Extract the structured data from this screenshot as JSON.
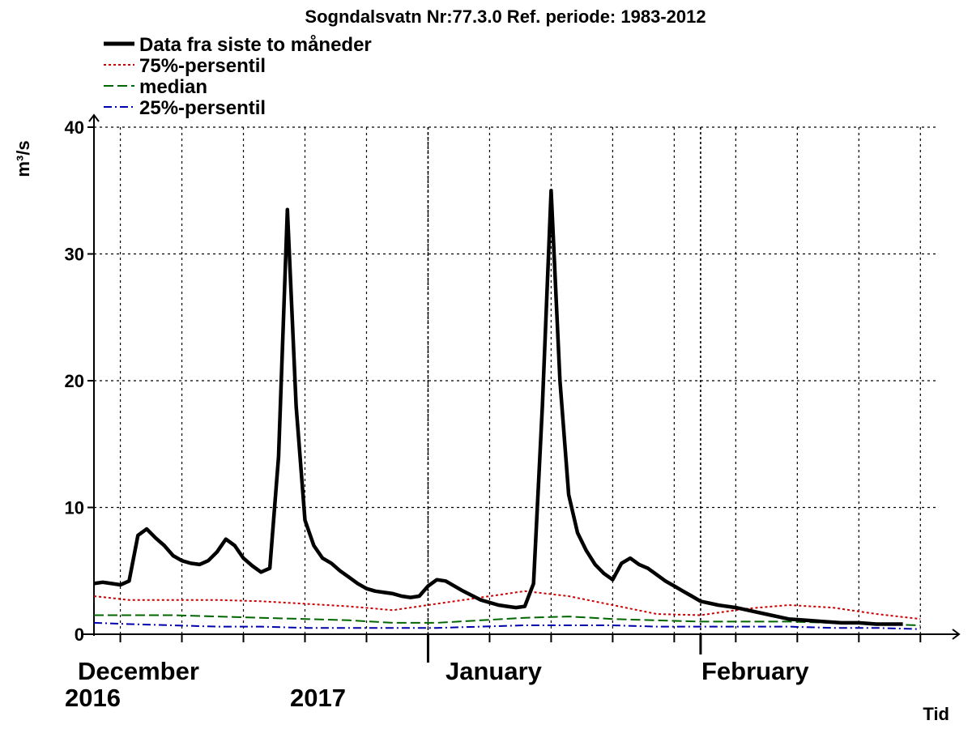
{
  "chart_data": {
    "type": "line",
    "title": "Sogndalsvatn Nr:77.3.0 Ref. periode: 1983-2012",
    "ylabel": "m³/s",
    "xlabel": "Tid",
    "ylim": [
      0,
      40
    ],
    "yticks": [
      0,
      10,
      20,
      30,
      40
    ],
    "xlim": [
      "2016-11-24",
      "2017-02-28"
    ],
    "grid": true,
    "legend_placement": "top-left",
    "month_labels": [
      {
        "label": "December",
        "year": "2016",
        "date": "2016-12-01"
      },
      {
        "label": "January",
        "year": "2017",
        "date": "2017-01-01"
      },
      {
        "label": "February",
        "year": "",
        "date": "2017-02-01"
      }
    ],
    "series": [
      {
        "name": "Data fra siste to måneder",
        "color": "#000000",
        "style": "solid",
        "x": [
          "2016-11-24",
          "2016-11-25",
          "2016-11-26",
          "2016-11-27",
          "2016-11-28",
          "2016-11-29",
          "2016-11-30",
          "2016-12-01",
          "2016-12-02",
          "2016-12-03",
          "2016-12-04",
          "2016-12-05",
          "2016-12-06",
          "2016-12-07",
          "2016-12-08",
          "2016-12-09",
          "2016-12-10",
          "2016-12-11",
          "2016-12-12",
          "2016-12-13",
          "2016-12-14",
          "2016-12-15",
          "2016-12-16",
          "2016-12-17",
          "2016-12-18",
          "2016-12-19",
          "2016-12-20",
          "2016-12-21",
          "2016-12-22",
          "2016-12-23",
          "2016-12-24",
          "2016-12-25",
          "2016-12-26",
          "2016-12-27",
          "2016-12-28",
          "2016-12-29",
          "2016-12-30",
          "2016-12-31",
          "2017-01-01",
          "2017-01-02",
          "2017-01-03",
          "2017-01-05",
          "2017-01-07",
          "2017-01-09",
          "2017-01-10",
          "2017-01-11",
          "2017-01-12",
          "2017-01-13",
          "2017-01-14",
          "2017-01-15",
          "2017-01-16",
          "2017-01-17",
          "2017-01-18",
          "2017-01-19",
          "2017-01-20",
          "2017-01-21",
          "2017-01-22",
          "2017-01-23",
          "2017-01-24",
          "2017-01-25",
          "2017-01-26",
          "2017-01-27",
          "2017-01-28",
          "2017-01-29",
          "2017-01-30",
          "2017-01-31",
          "2017-02-01",
          "2017-02-03",
          "2017-02-05",
          "2017-02-07",
          "2017-02-09",
          "2017-02-11",
          "2017-02-13",
          "2017-02-15",
          "2017-02-17",
          "2017-02-19",
          "2017-02-21",
          "2017-02-23",
          "2017-02-24"
        ],
        "values": [
          4.0,
          4.1,
          4.0,
          3.9,
          4.2,
          7.8,
          8.3,
          7.6,
          7.0,
          6.2,
          5.8,
          5.6,
          5.5,
          5.8,
          6.5,
          7.5,
          7.0,
          6.0,
          5.4,
          4.9,
          5.2,
          14.0,
          33.5,
          18.0,
          9.0,
          7.0,
          6.0,
          5.6,
          5.0,
          4.5,
          4.0,
          3.6,
          3.4,
          3.3,
          3.2,
          3.0,
          2.9,
          3.0,
          3.8,
          4.3,
          4.2,
          3.4,
          2.7,
          2.3,
          2.2,
          2.1,
          2.2,
          4.0,
          18.0,
          35.0,
          20.0,
          11.0,
          8.0,
          6.6,
          5.5,
          4.8,
          4.3,
          5.6,
          6.0,
          5.5,
          5.2,
          4.7,
          4.2,
          3.8,
          3.4,
          3.0,
          2.6,
          2.3,
          2.1,
          1.8,
          1.5,
          1.2,
          1.1,
          1.0,
          0.9,
          0.9,
          0.8,
          0.8,
          0.8
        ]
      },
      {
        "name": "75%-persentil",
        "color": "#cc0000",
        "style": "dotted",
        "x": [
          "2016-11-24",
          "2016-11-28",
          "2016-12-03",
          "2016-12-08",
          "2016-12-13",
          "2016-12-18",
          "2016-12-23",
          "2016-12-28",
          "2017-01-02",
          "2017-01-07",
          "2017-01-12",
          "2017-01-17",
          "2017-01-22",
          "2017-01-27",
          "2017-02-01",
          "2017-02-06",
          "2017-02-11",
          "2017-02-16",
          "2017-02-21",
          "2017-02-26"
        ],
        "values": [
          3.0,
          2.7,
          2.7,
          2.7,
          2.6,
          2.4,
          2.2,
          1.9,
          2.4,
          2.9,
          3.4,
          3.0,
          2.3,
          1.6,
          1.5,
          2.0,
          2.3,
          2.1,
          1.6,
          1.2
        ]
      },
      {
        "name": "median",
        "color": "#006600",
        "style": "dashed",
        "x": [
          "2016-11-24",
          "2016-11-28",
          "2016-12-03",
          "2016-12-08",
          "2016-12-13",
          "2016-12-18",
          "2016-12-23",
          "2016-12-28",
          "2017-01-02",
          "2017-01-07",
          "2017-01-12",
          "2017-01-17",
          "2017-01-22",
          "2017-01-27",
          "2017-02-01",
          "2017-02-06",
          "2017-02-11",
          "2017-02-16",
          "2017-02-21",
          "2017-02-26"
        ],
        "values": [
          1.5,
          1.5,
          1.5,
          1.4,
          1.3,
          1.2,
          1.1,
          0.9,
          0.9,
          1.1,
          1.3,
          1.4,
          1.2,
          1.1,
          1.0,
          1.0,
          1.0,
          0.9,
          0.8,
          0.7
        ]
      },
      {
        "name": "25%-persentil",
        "color": "#0000aa",
        "style": "dashdot",
        "x": [
          "2016-11-24",
          "2016-11-28",
          "2016-12-03",
          "2016-12-08",
          "2016-12-13",
          "2016-12-18",
          "2016-12-23",
          "2016-12-28",
          "2017-01-02",
          "2017-01-07",
          "2017-01-12",
          "2017-01-17",
          "2017-01-22",
          "2017-01-27",
          "2017-02-01",
          "2017-02-06",
          "2017-02-11",
          "2017-02-16",
          "2017-02-21",
          "2017-02-26"
        ],
        "values": [
          0.9,
          0.8,
          0.7,
          0.6,
          0.6,
          0.5,
          0.5,
          0.5,
          0.5,
          0.6,
          0.7,
          0.7,
          0.7,
          0.6,
          0.6,
          0.6,
          0.6,
          0.5,
          0.5,
          0.4
        ]
      }
    ]
  }
}
